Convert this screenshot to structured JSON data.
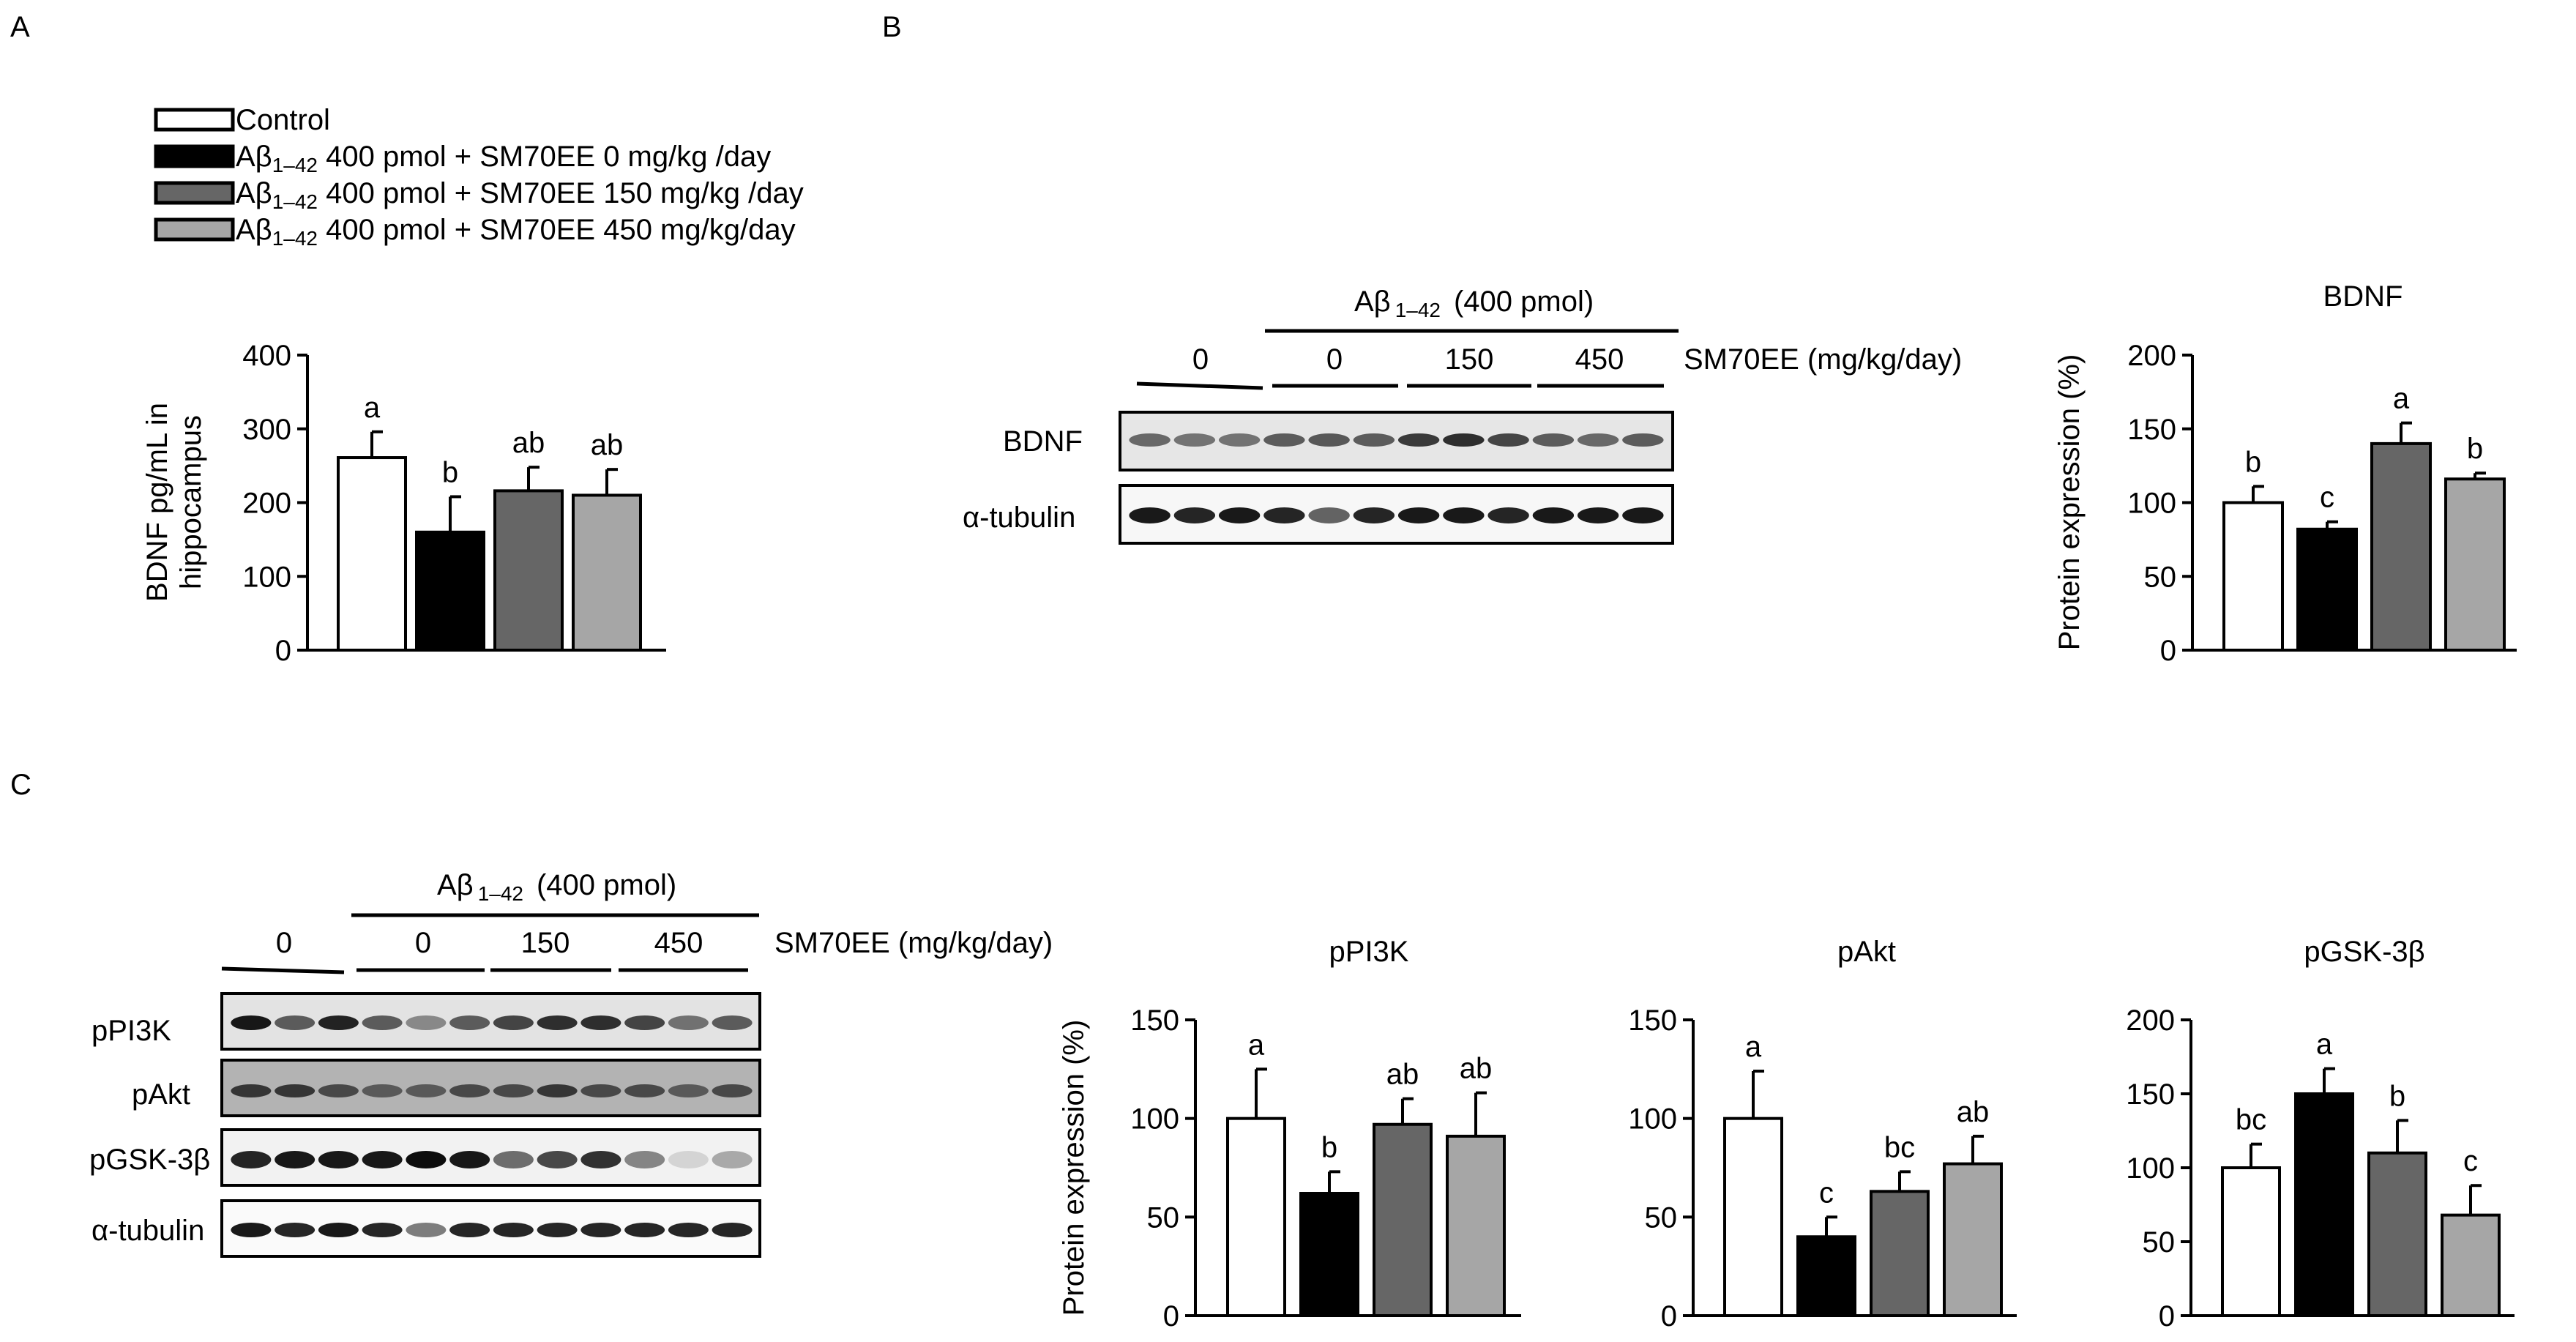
{
  "panels": {
    "A": "A",
    "B": "B",
    "C": "C"
  },
  "colors": {
    "control": "#ffffff",
    "dose0": "#000000",
    "dose150": "#666666",
    "dose450": "#a6a6a6",
    "outline": "#000000"
  },
  "legend": [
    {
      "label": "Control"
    },
    {
      "main": "Aβ",
      "sub": "1–42",
      "rest": " 400 pmol + SM70EE 0 mg/kg /day"
    },
    {
      "main": "Aβ",
      "sub": "1–42",
      "rest": " 400 pmol + SM70EE 150 mg/kg /day"
    },
    {
      "main": "Aβ",
      "sub": "1–42",
      "rest": " 400 pmol + SM70EE 450 mg/kg/day"
    }
  ],
  "blot_B": {
    "group_main": "Aβ",
    "group_sub": "1–42",
    "group_rest": "(400 pmol)",
    "doses": [
      "0",
      "0",
      "150",
      "450"
    ],
    "dose_unit": "SM70EE (mg/kg/day)",
    "rows": [
      "BDNF",
      "α-tubulin"
    ]
  },
  "blot_C": {
    "group_main": "Aβ",
    "group_sub": "1–42",
    "group_rest": "(400 pmol)",
    "doses": [
      "0",
      "0",
      "150",
      "450"
    ],
    "dose_unit": "SM70EE (mg/kg/day)",
    "rows": [
      "pPI3K",
      "pAkt",
      "pGSK-3β",
      "α-tubulin"
    ]
  },
  "chart_data": [
    {
      "panel": "A",
      "type": "bar",
      "title": "",
      "ylabel_lines": [
        "BDNF pg/mL in",
        "hippocampus"
      ],
      "ylim": [
        0,
        400
      ],
      "yticks": [
        0,
        100,
        200,
        300,
        400
      ],
      "values": [
        261,
        160,
        216,
        210
      ],
      "errors": [
        35,
        48,
        32,
        35
      ],
      "labels": [
        "a",
        "b",
        "ab",
        "ab"
      ]
    },
    {
      "panel": "B",
      "type": "bar",
      "title": "BDNF",
      "ylabel_lines": [
        "Protein expression (%)"
      ],
      "ylim": [
        0,
        200
      ],
      "yticks": [
        0,
        50,
        100,
        150,
        200
      ],
      "values": [
        100,
        82,
        140,
        116
      ],
      "errors": [
        11,
        5,
        14,
        4
      ],
      "labels": [
        "b",
        "c",
        "a",
        "b"
      ]
    },
    {
      "panel": "C",
      "type": "bar",
      "title": "pPI3K",
      "ylabel_lines": [
        "Protein expression (%)"
      ],
      "ylim": [
        0,
        150
      ],
      "yticks": [
        0,
        50,
        100,
        150
      ],
      "values": [
        100,
        62,
        97,
        91
      ],
      "errors": [
        25,
        11,
        13,
        22
      ],
      "labels": [
        "a",
        "b",
        "ab",
        "ab"
      ]
    },
    {
      "panel": "C",
      "type": "bar",
      "title": "pAkt",
      "ylabel_lines": [],
      "ylim": [
        0,
        150
      ],
      "yticks": [
        0,
        50,
        100,
        150
      ],
      "values": [
        100,
        40,
        63,
        77
      ],
      "errors": [
        24,
        10,
        10,
        14
      ],
      "labels": [
        "a",
        "c",
        "bc",
        "ab"
      ]
    },
    {
      "panel": "C",
      "type": "bar",
      "title": "pGSK-3β",
      "ylabel_lines": [],
      "ylim": [
        0,
        200
      ],
      "yticks": [
        0,
        50,
        100,
        150,
        200
      ],
      "values": [
        100,
        150,
        110,
        68
      ],
      "errors": [
        16,
        17,
        22,
        20
      ],
      "labels": [
        "bc",
        "a",
        "b",
        "c"
      ]
    }
  ]
}
